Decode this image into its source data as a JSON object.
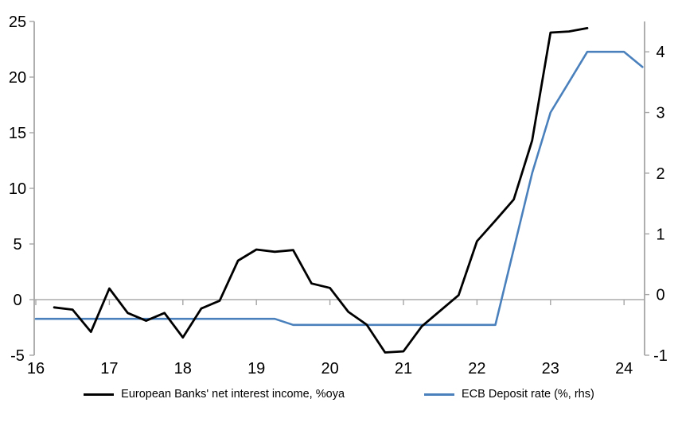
{
  "chart_data": {
    "type": "line",
    "title": "",
    "x_unit": "years (quarterly data)",
    "x_tick_values": [
      16,
      17,
      18,
      19,
      20,
      21,
      22,
      23,
      24
    ],
    "x_tick_labels": [
      "16",
      "17",
      "18",
      "19",
      "20",
      "21",
      "22",
      "23",
      "24"
    ],
    "left_axis": {
      "ticks": [
        -5,
        0,
        5,
        10,
        15,
        20,
        25
      ],
      "range": [
        -5,
        25
      ]
    },
    "right_axis": {
      "ticks": [
        -1,
        0,
        1,
        2,
        3,
        4
      ],
      "range": [
        -1,
        4.5
      ]
    },
    "grid": "zero-line-only",
    "legend_position": "bottom",
    "series": [
      {
        "name": "European Banks' net interest income, %oya",
        "axis": "left",
        "color": "#000000",
        "x": [
          16.25,
          16.5,
          16.75,
          17.0,
          17.25,
          17.5,
          17.75,
          18.0,
          18.25,
          18.5,
          18.75,
          19.0,
          19.25,
          19.5,
          19.75,
          20.0,
          20.25,
          20.5,
          20.75,
          21.0,
          21.25,
          21.5,
          21.75,
          22.0,
          22.25,
          22.5,
          22.75,
          23.0,
          23.25,
          23.5
        ],
        "values": [
          -0.7,
          -0.9,
          -2.9,
          1.0,
          -1.2,
          -1.9,
          -1.2,
          -3.4,
          -0.8,
          -0.1,
          3.5,
          4.5,
          4.3,
          4.45,
          1.45,
          1.05,
          -1.1,
          -2.25,
          -4.75,
          -4.65,
          -2.4,
          -1.0,
          0.4,
          5.25,
          7.1,
          9.0,
          14.3,
          24.0,
          24.1,
          24.4
        ]
      },
      {
        "name": "ECB Deposit rate (%, rhs)",
        "axis": "right",
        "color": "#4a81bd",
        "x": [
          16.0,
          16.25,
          16.5,
          16.75,
          17.0,
          17.25,
          17.5,
          17.75,
          18.0,
          18.25,
          18.5,
          18.75,
          19.0,
          19.25,
          19.5,
          19.75,
          20.0,
          20.25,
          20.5,
          20.75,
          21.0,
          21.25,
          21.5,
          21.75,
          22.0,
          22.25,
          22.5,
          22.75,
          23.0,
          23.25,
          23.5,
          23.75,
          24.0,
          24.25
        ],
        "values": [
          -0.4,
          -0.4,
          -0.4,
          -0.4,
          -0.4,
          -0.4,
          -0.4,
          -0.4,
          -0.4,
          -0.4,
          -0.4,
          -0.4,
          -0.4,
          -0.4,
          -0.5,
          -0.5,
          -0.5,
          -0.5,
          -0.5,
          -0.5,
          -0.5,
          -0.5,
          -0.5,
          -0.5,
          -0.5,
          -0.5,
          0.75,
          2.0,
          3.0,
          3.5,
          4.0,
          4.0,
          4.0,
          3.75
        ]
      }
    ]
  },
  "colors": {
    "axis_line": "#a6a6a6",
    "zero_line": "#ababab",
    "background": "#ffffff",
    "nii_line": "#000000",
    "deposit_line": "#4a81bd"
  }
}
